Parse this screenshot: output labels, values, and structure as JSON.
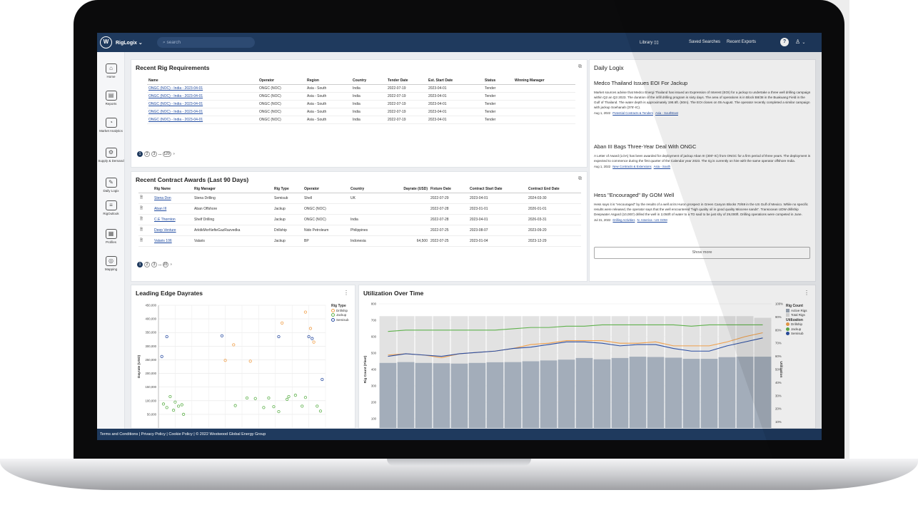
{
  "topbar": {
    "logo": "W",
    "brand": "RigLogix",
    "brand_caret": "⌄",
    "search_placeholder": "search",
    "library": "Library",
    "saved": "Saved Searches",
    "exports": "Recent Exports",
    "help": "?",
    "user_icon": "user-icon"
  },
  "sidebar": {
    "items": [
      {
        "label": "Home",
        "icon": "⌂"
      },
      {
        "label": "Reports",
        "icon": "▤"
      },
      {
        "label": "Market Analytics",
        "icon": "◔"
      },
      {
        "label": "Supply & Demand",
        "icon": "⚙"
      },
      {
        "label": "Daily Logix",
        "icon": "✎"
      },
      {
        "label": "RigOutlook",
        "icon": "≡"
      },
      {
        "label": "Profiles",
        "icon": "▦"
      },
      {
        "label": "Mapping",
        "icon": "◎"
      }
    ]
  },
  "requirements": {
    "title": "Recent Rig Requirements",
    "headers": [
      "Name",
      "Operator",
      "Region",
      "Country",
      "Tender Date",
      "Est. Start Date",
      "Status",
      "Winning Manager"
    ],
    "rows": [
      [
        "ONGC (NOC) - India - 2023-04-01",
        "ONGC (NOC)",
        "Asia - South",
        "India",
        "2022-07-19",
        "2023-04-01",
        "Tender",
        ""
      ],
      [
        "ONGC (NOC) - India - 2023-04-01",
        "ONGC (NOC)",
        "Asia - South",
        "India",
        "2022-07-19",
        "2023-04-01",
        "Tender",
        ""
      ],
      [
        "ONGC (NOC) - India - 2023-04-01",
        "ONGC (NOC)",
        "Asia - South",
        "India",
        "2022-07-19",
        "2023-04-01",
        "Tender",
        ""
      ],
      [
        "ONGC (NOC) - India - 2023-04-01",
        "ONGC (NOC)",
        "Asia - South",
        "India",
        "2022-07-19",
        "2023-04-01",
        "Tender",
        ""
      ],
      [
        "ONGC (NOC) - India - 2023-04-01",
        "ONGC (NOC)",
        "Asia - South",
        "India",
        "2022-07-19",
        "2023-04-01",
        "Tender",
        ""
      ]
    ],
    "pager": [
      "1",
      "2",
      "3",
      "...",
      "129",
      "›"
    ]
  },
  "contracts": {
    "title": "Recent Contract Awards (Last 90 Days)",
    "headers": [
      "",
      "Rig Name",
      "Rig Manager",
      "Rig Type",
      "Operator",
      "Country",
      "Dayrate (USD)",
      "Fixture Date",
      "Contract Start Date",
      "Contract End Date"
    ],
    "rows": [
      [
        "",
        "Stena Don",
        "Stena Drilling",
        "Semisub",
        "Shell",
        "UK",
        "",
        "2022-07-29",
        "2023-04-01",
        "2024-03-30"
      ],
      [
        "",
        "Aban III",
        "Aban Offshore",
        "Jackup",
        "ONGC (NOC)",
        "",
        "",
        "2022-07-28",
        "2023-01-01",
        "2026-01-01"
      ],
      [
        "",
        "C.E Thornton",
        "Shelf Drilling",
        "Jackup",
        "ONGC (NOC)",
        "India",
        "",
        "2022-07-28",
        "2023-04-01",
        "2026-03-31"
      ],
      [
        "",
        "Deep Venture",
        "ArktikMorNefteGazRazvedka",
        "Drillship",
        "Nido Petroleum",
        "Philippines",
        "",
        "2022-07-25",
        "2023-08-07",
        "2023-09-20"
      ],
      [
        "",
        "Valaris 106",
        "Valaris",
        "Jackup",
        "BP",
        "Indonesia",
        "64,500",
        "2022-07-25",
        "2023-01-04",
        "2023-12-29"
      ]
    ],
    "pager": [
      "1",
      "2",
      "3",
      "...",
      "20",
      "›"
    ]
  },
  "logix": {
    "title": "Daily Logix",
    "items": [
      {
        "h": "Medco Thailand Issues EOI For Jackup",
        "b": "Market sources advise that Medco Energi Thailand has issued an Expression of Interest (EOI) for a jackup to undertake a three well drilling campaign within Q2 an Q3 2023. The duration of the infill drilling program is sixty days. The area of operations is in Block B8/38 in the Buakuang Field in the Gulf of Thailand. The water depth is approximately 198.6ft. (60m). The EOI closes on 05 August. The operator recently completed a similar campaign with jackup Soehanah (375'-IC).",
        "d": "Aug 1, 2022",
        "t1": "Potential Contracts & Tenders",
        "t2": "Asia - SouthEast"
      },
      {
        "h": "Aban III Bags Three-Year Deal With ONGC",
        "b": "A Letter of Award (LOA) has been awarded for deployment of jackup Aban III (300'-IC) from ONGC for a firm period of three years. The deployment is expected to commence during the first quarter of the Calendar year 2023. The rig is currently on hire with the same operator offshore India.",
        "d": "Aug 1, 2022",
        "t1": "New Contracts & Extensions",
        "t2": "Asia - South"
      },
      {
        "h": "Hess \"Encouraged\" By GOM Well",
        "b": "Hess says it is \"encouraged\" by the results of a well at its Huron prospect in Green Canyon Blocks 70/69 in the US Gulf of Mexico. While no specific results were released, the operator says that the well encountered \"high quality oil in good quality Miocene sands\". Transocean UDW drillship Deepwater Asgard (10,000') drilled the well in 2,050ft of water to a TD said to be just shy of 29,000ft. Drilling operations were competed in June.",
        "d": "Jul 31, 2022",
        "t1": "Drilling Activities",
        "t2": "N. America - US GOM"
      }
    ],
    "show_more": "Show more"
  },
  "dayrates": {
    "title": "Leading Edge Dayrates",
    "menu": "⋮"
  },
  "utilization": {
    "title": "Utilization Over Time",
    "menu": "⋮"
  },
  "footer": {
    "text": "Terms and Conditions  |  Privacy Policy  |  Cookie Policy  |  © 2022 Westwood Global Energy Group"
  },
  "chart_data": [
    {
      "type": "scatter",
      "title": "Leading Edge Dayrates",
      "ylabel": "Dayrate (USD)",
      "ylim": [
        0,
        450000
      ],
      "yticks": [
        "450,000",
        "400,000",
        "350,000",
        "300,000",
        "250,000",
        "200,000",
        "150,000",
        "100,000",
        "50,000"
      ],
      "legend_title": "Rig Type",
      "legend_position": "top-right",
      "series": [
        {
          "name": "Drillship",
          "color": "#f0a04b",
          "points": [
            [
              0.4,
              248000
            ],
            [
              0.45,
              305000
            ],
            [
              0.55,
              245000
            ],
            [
              0.74,
              385000
            ],
            [
              0.88,
              425000
            ],
            [
              0.91,
              365000
            ],
            [
              0.93,
              315000
            ]
          ]
        },
        {
          "name": "Jackup",
          "color": "#5fb14c",
          "points": [
            [
              0.03,
              88000
            ],
            [
              0.05,
              75000
            ],
            [
              0.07,
              115000
            ],
            [
              0.09,
              65000
            ],
            [
              0.1,
              95000
            ],
            [
              0.12,
              80000
            ],
            [
              0.14,
              85000
            ],
            [
              0.15,
              50000
            ],
            [
              0.46,
              82000
            ],
            [
              0.53,
              110000
            ],
            [
              0.58,
              108000
            ],
            [
              0.63,
              75000
            ],
            [
              0.66,
              110000
            ],
            [
              0.69,
              78000
            ],
            [
              0.72,
              60000
            ],
            [
              0.77,
              105000
            ],
            [
              0.78,
              115000
            ],
            [
              0.82,
              120000
            ],
            [
              0.86,
              80000
            ],
            [
              0.88,
              112000
            ],
            [
              0.95,
              80000
            ],
            [
              0.97,
              62000
            ]
          ]
        },
        {
          "name": "Semisub",
          "color": "#2c4fa3",
          "points": [
            [
              0.02,
              262000
            ],
            [
              0.05,
              335000
            ],
            [
              0.38,
              338000
            ],
            [
              0.72,
              335000
            ],
            [
              0.9,
              335000
            ],
            [
              0.92,
              328000
            ],
            [
              0.98,
              178000
            ]
          ]
        }
      ]
    },
    {
      "type": "bar",
      "title": "Utilization Over Time",
      "ylabel": "Rig Count (Fleet)",
      "y2label": "Utilization",
      "ylim": [
        0,
        800
      ],
      "yticks": [
        "800",
        "700",
        "600",
        "500",
        "400",
        "300",
        "200",
        "100"
      ],
      "y2ticks": [
        "100%",
        "90%",
        "80%",
        "70%",
        "60%",
        "50%",
        "40%",
        "30%",
        "20%",
        "10%"
      ],
      "legend": {
        "rig_count": "Rig Count",
        "active": "Active Rigs",
        "total": "Total Rigs",
        "utilization": "Utilization",
        "drillship": "Drillship",
        "jackup": "Jackup",
        "semisub": "Semisub"
      },
      "total_rigs": [
        725,
        725,
        725,
        725,
        725,
        725,
        725,
        725,
        725,
        725,
        725,
        725,
        725,
        725,
        725,
        725,
        725,
        725,
        725,
        725,
        725,
        715
      ],
      "active_rigs": [
        440,
        445,
        440,
        438,
        436,
        440,
        444,
        445,
        450,
        455,
        460,
        470,
        462,
        470,
        478,
        476,
        472,
        465,
        465,
        475,
        478,
        478
      ],
      "drillship_pct": [
        61,
        62,
        61,
        59,
        62,
        63,
        64,
        66,
        69,
        70,
        72,
        72,
        72,
        70,
        70,
        71,
        68,
        68,
        68,
        71,
        75,
        78
      ],
      "jackup_pct": [
        79,
        80,
        80,
        80,
        80,
        80,
        80,
        81,
        82,
        82,
        83,
        83,
        84,
        84,
        84,
        84,
        84,
        83,
        84,
        84,
        84,
        84
      ],
      "semisub_pct": [
        60,
        62,
        61,
        60,
        62,
        63,
        64,
        66,
        67,
        69,
        71,
        71,
        70,
        68,
        69,
        69,
        66,
        64,
        64,
        68,
        71,
        74
      ]
    }
  ]
}
